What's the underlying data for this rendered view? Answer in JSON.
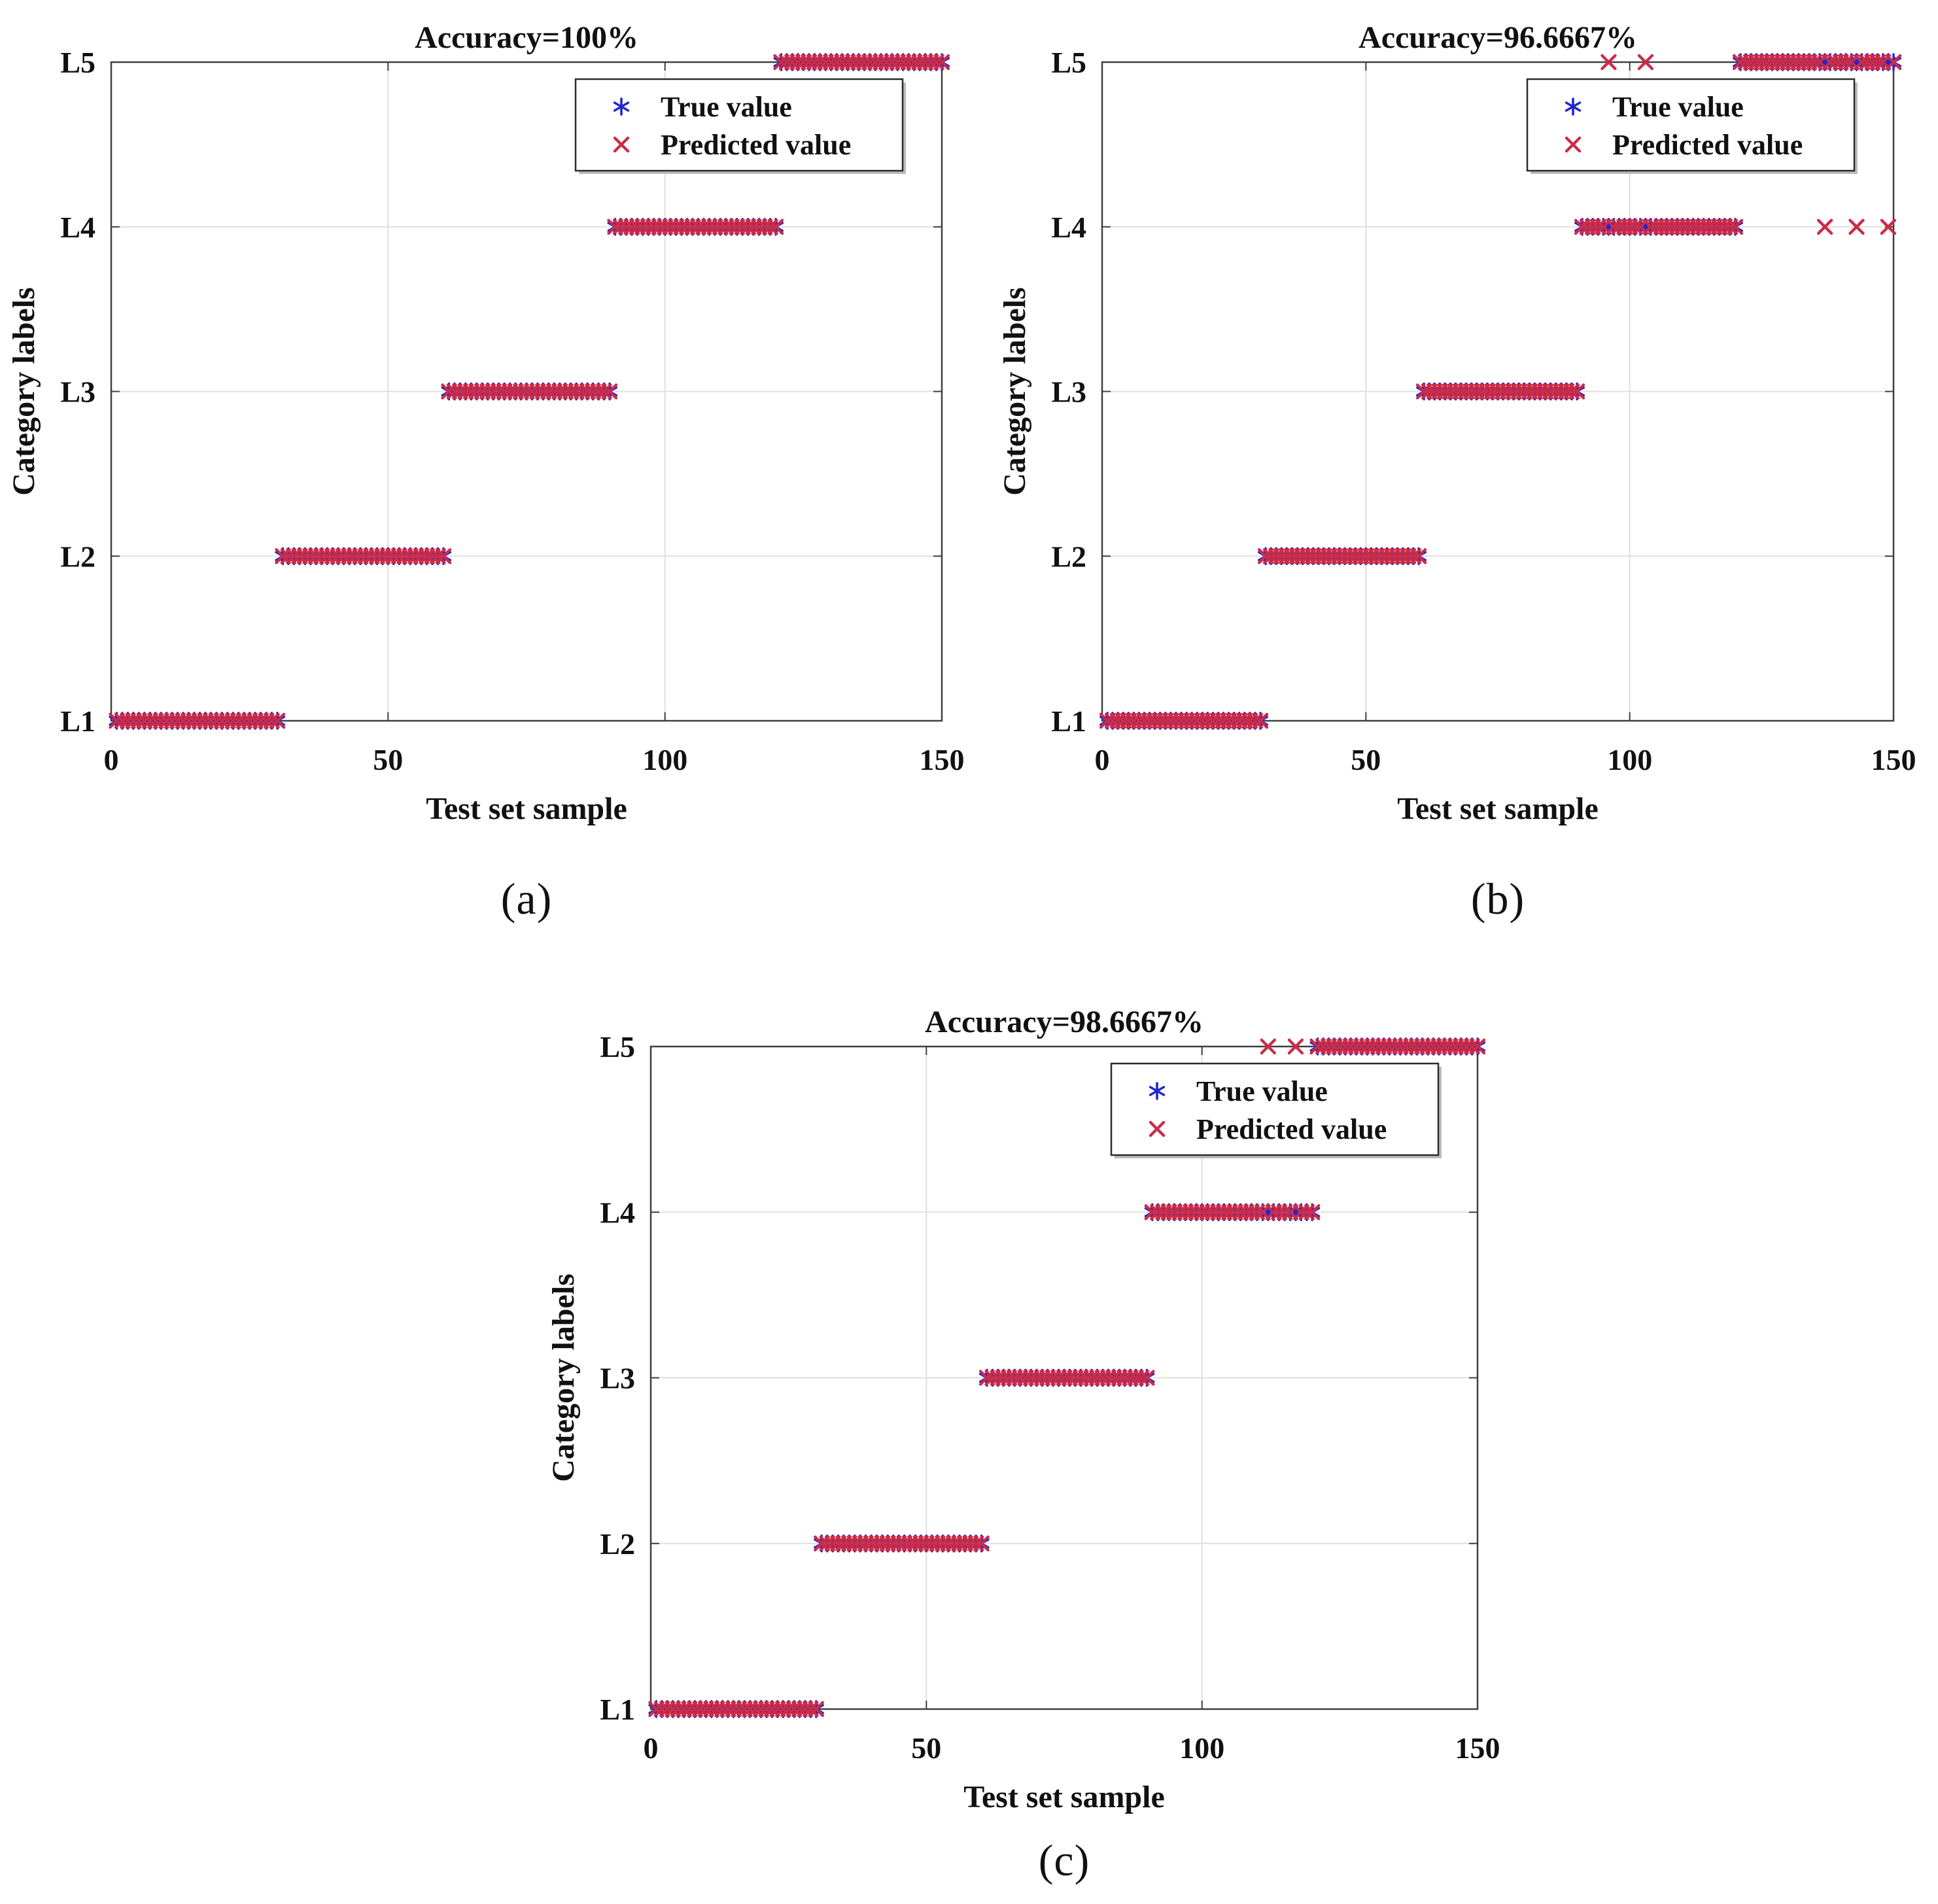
{
  "figure": {
    "captions": {
      "a": "(a)",
      "b": "(b)",
      "c": "(c)"
    }
  },
  "colors": {
    "true_value": "#2326CE",
    "predicted_value": "#CB2C48",
    "grid": "#E0E0E0",
    "axis": "#3F3F3F",
    "text": "#111111",
    "legend_border": "#2B2B2B",
    "background": "#FFFFFF"
  },
  "chart_data": [
    {
      "id": "a",
      "type": "scatter",
      "title": "Accuracy=100%",
      "accuracy": "100%",
      "xlabel": "Test set sample",
      "ylabel": "Category labels",
      "xlim": [
        0,
        150
      ],
      "xticks": [
        0,
        50,
        100,
        150
      ],
      "categories": [
        "L1",
        "L2",
        "L3",
        "L4",
        "L5"
      ],
      "samples_per_class": 30,
      "n_samples": 150,
      "grid": true,
      "legend_position": "top-right",
      "series": [
        {
          "name": "True value",
          "marker": "asterisk",
          "color": "#2326CE"
        },
        {
          "name": "Predicted value",
          "marker": "x",
          "color": "#CB2C48"
        }
      ],
      "misclassified": []
    },
    {
      "id": "b",
      "type": "scatter",
      "title": "Accuracy=96.6667%",
      "accuracy": "96.6667%",
      "xlabel": "Test set sample",
      "ylabel": "Category labels",
      "xlim": [
        0,
        150
      ],
      "xticks": [
        0,
        50,
        100,
        150
      ],
      "categories": [
        "L1",
        "L2",
        "L3",
        "L4",
        "L5"
      ],
      "samples_per_class": 30,
      "n_samples": 150,
      "grid": true,
      "legend_position": "top-right",
      "series": [
        {
          "name": "True value",
          "marker": "asterisk",
          "color": "#2326CE"
        },
        {
          "name": "Predicted value",
          "marker": "x",
          "color": "#CB2C48"
        }
      ],
      "misclassified": [
        {
          "sample": 96,
          "true": "L4",
          "predicted": "L5"
        },
        {
          "sample": 103,
          "true": "L4",
          "predicted": "L5"
        },
        {
          "sample": 137,
          "true": "L5",
          "predicted": "L4"
        },
        {
          "sample": 143,
          "true": "L5",
          "predicted": "L4"
        },
        {
          "sample": 149,
          "true": "L5",
          "predicted": "L4"
        }
      ]
    },
    {
      "id": "c",
      "type": "scatter",
      "title": "Accuracy=98.6667%",
      "accuracy": "98.6667%",
      "xlabel": "Test set sample",
      "ylabel": "Category labels",
      "xlim": [
        0,
        150
      ],
      "xticks": [
        0,
        50,
        100,
        150
      ],
      "categories": [
        "L1",
        "L2",
        "L3",
        "L4",
        "L5"
      ],
      "samples_per_class": 30,
      "n_samples": 150,
      "grid": true,
      "legend_position": "top-right",
      "series": [
        {
          "name": "True value",
          "marker": "asterisk",
          "color": "#2326CE"
        },
        {
          "name": "Predicted value",
          "marker": "x",
          "color": "#CB2C48"
        }
      ],
      "misclassified": [
        {
          "sample": 112,
          "true": "L4",
          "predicted": "L5"
        },
        {
          "sample": 117,
          "true": "L4",
          "predicted": "L5"
        }
      ]
    }
  ]
}
